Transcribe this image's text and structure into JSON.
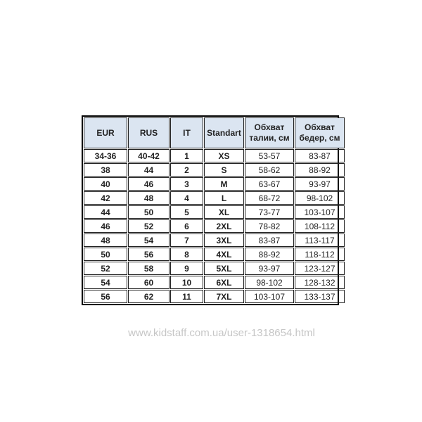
{
  "table": {
    "headers": [
      "EUR",
      "RUS",
      "IT",
      "Standart",
      "Обхват талии, см",
      "Обхват бедер, см"
    ],
    "rows": [
      [
        "34-36",
        "40-42",
        "1",
        "XS",
        "53-57",
        "83-87"
      ],
      [
        "38",
        "44",
        "2",
        "S",
        "58-62",
        "88-92"
      ],
      [
        "40",
        "46",
        "3",
        "M",
        "63-67",
        "93-97"
      ],
      [
        "42",
        "48",
        "4",
        "L",
        "68-72",
        "98-102"
      ],
      [
        "44",
        "50",
        "5",
        "XL",
        "73-77",
        "103-107"
      ],
      [
        "46",
        "52",
        "6",
        "2XL",
        "78-82",
        "108-112"
      ],
      [
        "48",
        "54",
        "7",
        "3XL",
        "83-87",
        "113-117"
      ],
      [
        "50",
        "56",
        "8",
        "4XL",
        "88-92",
        "118-112"
      ],
      [
        "52",
        "58",
        "9",
        "5XL",
        "93-97",
        "123-127"
      ],
      [
        "54",
        "60",
        "10",
        "6XL",
        "98-102",
        "128-132"
      ],
      [
        "56",
        "62",
        "11",
        "7XL",
        "103-107",
        "133-137"
      ]
    ],
    "header_bg": "#dbe5f1"
  },
  "watermark": "www.kidstaff.com.ua/user-1318654.html"
}
